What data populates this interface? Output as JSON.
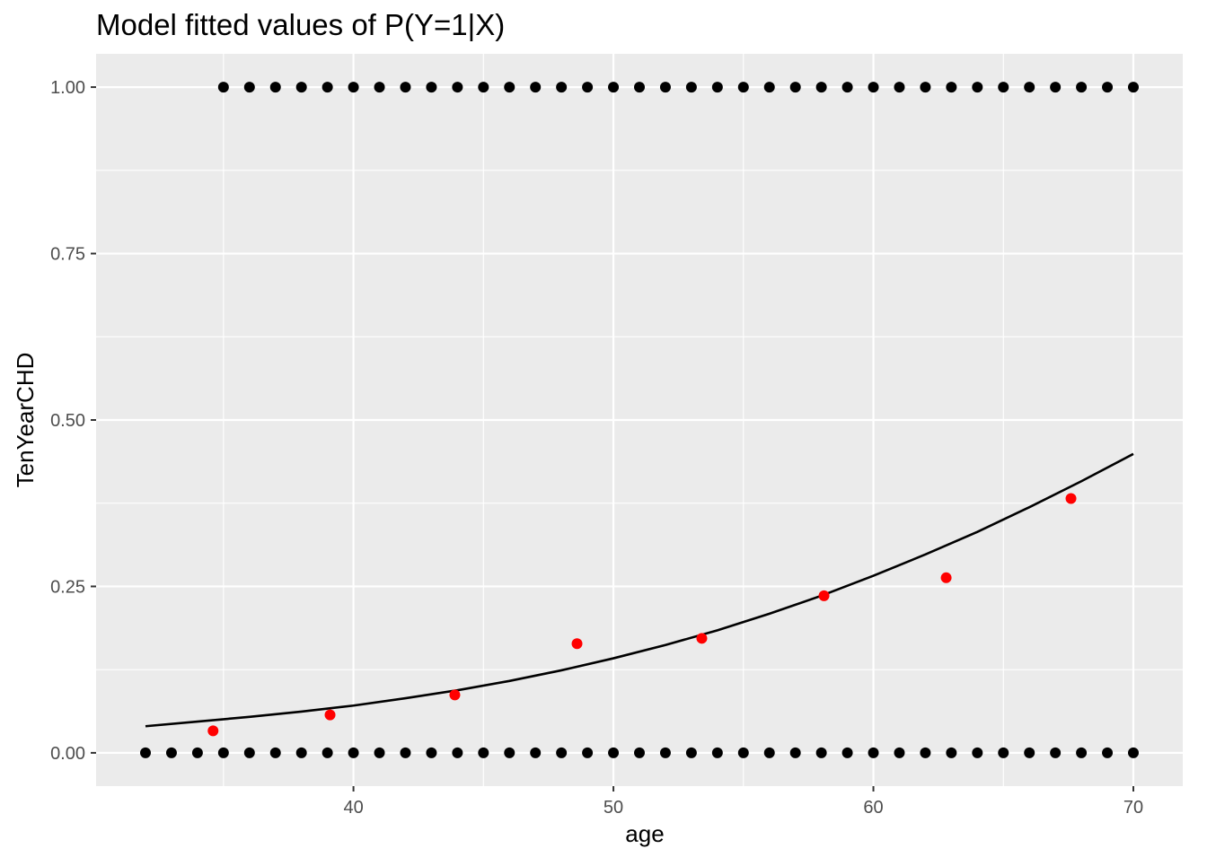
{
  "chart_data": {
    "type": "scatter",
    "title": "Model fitted values of P(Y=1|X)",
    "xlabel": "age",
    "ylabel": "TenYearCHD",
    "xlim": [
      30.1,
      71.9
    ],
    "ylim": [
      -0.05,
      1.05
    ],
    "x_ticks": [
      40,
      50,
      60,
      70
    ],
    "x_tick_labels": [
      "40",
      "50",
      "60",
      "70"
    ],
    "y_ticks": [
      0,
      0.25,
      0.5,
      0.75,
      1.0
    ],
    "y_tick_labels": [
      "0.00",
      "0.25",
      "0.50",
      "0.75",
      "1.00"
    ],
    "grid": true,
    "legend": "none",
    "colors": {
      "panel_background": "#ebebeb",
      "grid": "#ffffff",
      "observed_points": "#000000",
      "binned_means": "#ff0000",
      "fitted_curve": "#000000"
    },
    "series": [
      {
        "kind": "points",
        "color": "#000000",
        "points": [
          [
            32,
            0
          ],
          [
            33,
            0
          ],
          [
            34,
            0
          ],
          [
            35,
            0
          ],
          [
            36,
            0
          ],
          [
            37,
            0
          ],
          [
            38,
            0
          ],
          [
            39,
            0
          ],
          [
            40,
            0
          ],
          [
            41,
            0
          ],
          [
            42,
            0
          ],
          [
            43,
            0
          ],
          [
            44,
            0
          ],
          [
            45,
            0
          ],
          [
            46,
            0
          ],
          [
            47,
            0
          ],
          [
            48,
            0
          ],
          [
            49,
            0
          ],
          [
            50,
            0
          ],
          [
            51,
            0
          ],
          [
            52,
            0
          ],
          [
            53,
            0
          ],
          [
            54,
            0
          ],
          [
            55,
            0
          ],
          [
            56,
            0
          ],
          [
            57,
            0
          ],
          [
            58,
            0
          ],
          [
            59,
            0
          ],
          [
            60,
            0
          ],
          [
            61,
            0
          ],
          [
            62,
            0
          ],
          [
            63,
            0
          ],
          [
            64,
            0
          ],
          [
            65,
            0
          ],
          [
            66,
            0
          ],
          [
            67,
            0
          ],
          [
            68,
            0
          ],
          [
            69,
            0
          ],
          [
            70,
            0
          ],
          [
            35,
            1
          ],
          [
            36,
            1
          ],
          [
            37,
            1
          ],
          [
            38,
            1
          ],
          [
            39,
            1
          ],
          [
            40,
            1
          ],
          [
            41,
            1
          ],
          [
            42,
            1
          ],
          [
            43,
            1
          ],
          [
            44,
            1
          ],
          [
            45,
            1
          ],
          [
            46,
            1
          ],
          [
            47,
            1
          ],
          [
            48,
            1
          ],
          [
            49,
            1
          ],
          [
            50,
            1
          ],
          [
            51,
            1
          ],
          [
            52,
            1
          ],
          [
            53,
            1
          ],
          [
            54,
            1
          ],
          [
            55,
            1
          ],
          [
            56,
            1
          ],
          [
            57,
            1
          ],
          [
            58,
            1
          ],
          [
            59,
            1
          ],
          [
            60,
            1
          ],
          [
            61,
            1
          ],
          [
            62,
            1
          ],
          [
            63,
            1
          ],
          [
            64,
            1
          ],
          [
            65,
            1
          ],
          [
            66,
            1
          ],
          [
            67,
            1
          ],
          [
            68,
            1
          ],
          [
            69,
            1
          ],
          [
            70,
            1
          ]
        ]
      },
      {
        "kind": "points",
        "color": "#ff0000",
        "points": [
          [
            34.6,
            0.033
          ],
          [
            39.1,
            0.057
          ],
          [
            43.9,
            0.087
          ],
          [
            48.6,
            0.164
          ],
          [
            53.4,
            0.172
          ],
          [
            58.1,
            0.236
          ],
          [
            62.8,
            0.263
          ],
          [
            67.6,
            0.382
          ]
        ]
      },
      {
        "kind": "line",
        "color": "#000000",
        "points": [
          [
            32,
            0.04
          ],
          [
            34,
            0.047
          ],
          [
            36,
            0.054
          ],
          [
            38,
            0.062
          ],
          [
            40,
            0.071
          ],
          [
            42,
            0.082
          ],
          [
            44,
            0.094
          ],
          [
            46,
            0.108
          ],
          [
            48,
            0.124
          ],
          [
            50,
            0.142
          ],
          [
            52,
            0.162
          ],
          [
            54,
            0.184
          ],
          [
            56,
            0.209
          ],
          [
            58,
            0.236
          ],
          [
            60,
            0.266
          ],
          [
            62,
            0.298
          ],
          [
            64,
            0.332
          ],
          [
            66,
            0.369
          ],
          [
            68,
            0.408
          ],
          [
            70,
            0.449
          ]
        ]
      }
    ]
  }
}
